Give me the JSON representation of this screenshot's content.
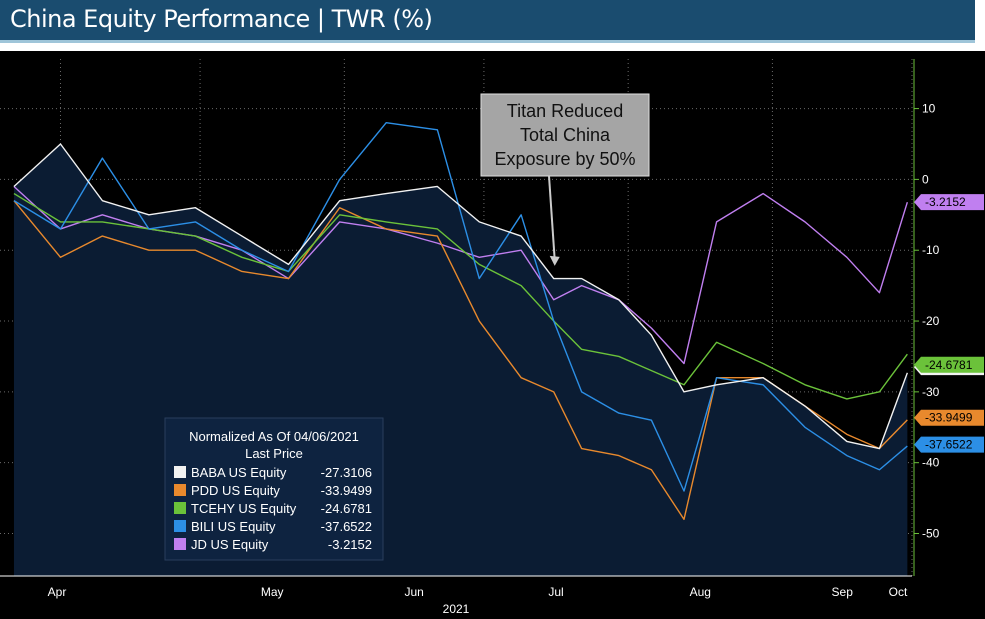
{
  "header": {
    "title": "China Equity Performance | TWR (%)"
  },
  "colors": {
    "background": "#000000",
    "area": "#0b1c33",
    "BABA": "#f2f2f2",
    "PDD": "#e8892d",
    "TCEHY": "#6bc23a",
    "BILI": "#2c8fe6",
    "JD": "#c07ff0",
    "axis": "#6bc23a"
  },
  "annotation": {
    "lines": [
      "Titan Reduced",
      "Total China",
      "Exposure by 50%"
    ],
    "x": "2021-07-16",
    "y": -12.5
  },
  "chart_data": {
    "type": "line",
    "title": "China Equity Performance | TWR (%)",
    "x_ticks": [
      "Apr",
      "May",
      "Jun",
      "Jul",
      "Aug",
      "Sep",
      "Oct"
    ],
    "x_year": "2021",
    "ylim": [
      -56,
      17
    ],
    "y_ticks": [
      10,
      0,
      -10,
      -20,
      -30,
      -40,
      -50
    ],
    "y_tick_labels": [
      "10",
      "0",
      "-10",
      "-20",
      "-30",
      "-40",
      "-50"
    ],
    "grid": true,
    "legend": {
      "title": "Normalized As Of 04/06/2021",
      "subtitle": "Last Price",
      "placement": "bottom-left"
    },
    "x": [
      "2021-03-22",
      "2021-04-01",
      "2021-04-10",
      "2021-04-20",
      "2021-04-30",
      "2021-05-10",
      "2021-05-20",
      "2021-05-31",
      "2021-06-10",
      "2021-06-21",
      "2021-06-30",
      "2021-07-09",
      "2021-07-16",
      "2021-07-22",
      "2021-07-30",
      "2021-08-06",
      "2021-08-13",
      "2021-08-20",
      "2021-08-30",
      "2021-09-08",
      "2021-09-17",
      "2021-09-24",
      "2021-09-30"
    ],
    "series": [
      {
        "name": "BABA US Equity",
        "key": "BABA",
        "last": "-27.3106",
        "values": [
          -1,
          5,
          -3,
          -5,
          -4,
          -8,
          -12,
          -3,
          -2,
          -1,
          -6,
          -8,
          -14,
          -14,
          -17,
          -22,
          -30,
          -29,
          -28,
          -32,
          -37,
          -38,
          -27.3106
        ]
      },
      {
        "name": "PDD US Equity",
        "key": "PDD",
        "last": "-33.9499",
        "values": [
          -3,
          -11,
          -8,
          -10,
          -10,
          -13,
          -14,
          -4,
          -7,
          -8,
          -20,
          -28,
          -30,
          -38,
          -39,
          -41,
          -48,
          -28,
          -28,
          -32,
          -36,
          -38,
          -33.9499
        ]
      },
      {
        "name": "TCEHY US Equity",
        "key": "TCEHY",
        "last": "-24.6781",
        "values": [
          -2,
          -6,
          -6,
          -7,
          -8,
          -11,
          -13,
          -5,
          -6,
          -7,
          -12,
          -15,
          -20,
          -24,
          -25,
          -27,
          -29,
          -23,
          -26,
          -29,
          -31,
          -30,
          -24.6781
        ]
      },
      {
        "name": "BILI US Equity",
        "key": "BILI",
        "last": "-37.6522",
        "values": [
          -3,
          -7,
          3,
          -7,
          -6,
          -10,
          -13,
          0,
          8,
          7,
          -14,
          -5,
          -20,
          -30,
          -33,
          -34,
          -44,
          -28,
          -29,
          -35,
          -39,
          -41,
          -37.6522
        ]
      },
      {
        "name": "JD US Equity",
        "key": "JD",
        "last": "-3.2152",
        "values": [
          -1,
          -7,
          -5,
          -7,
          -8,
          -10,
          -14,
          -6,
          -7,
          -9,
          -11,
          -10,
          -17,
          -15,
          -17,
          -21,
          -26,
          -6,
          -2,
          -6,
          -11,
          -16,
          -3.2152
        ]
      }
    ]
  }
}
